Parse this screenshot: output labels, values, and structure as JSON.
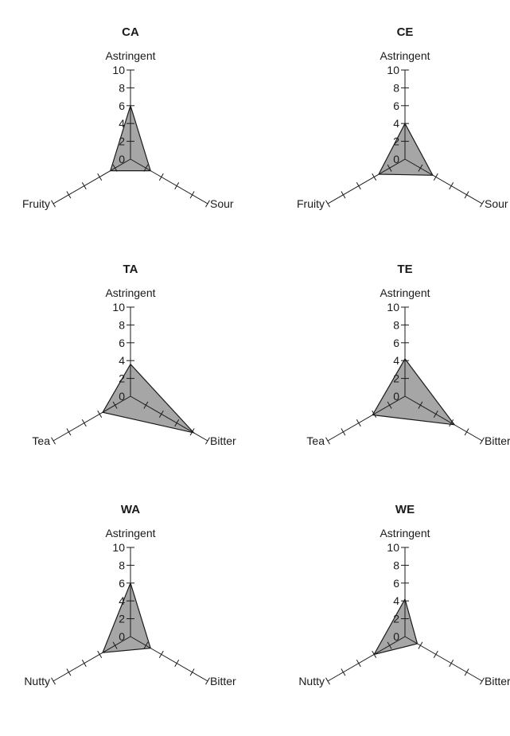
{
  "chart_data": [
    {
      "type": "radar",
      "title": "CA",
      "axes": [
        "Astringent",
        "Sour",
        "Fruity"
      ],
      "values": [
        6,
        2.6,
        2.6
      ],
      "ticks": [
        "0",
        "2",
        "4",
        "6",
        "8",
        "10"
      ],
      "rmax": 10,
      "color": "#a6a6a6"
    },
    {
      "type": "radar",
      "title": "CE",
      "axes": [
        "Astringent",
        "Sour",
        "Fruity"
      ],
      "values": [
        4,
        3.6,
        3.4
      ],
      "ticks": [
        "0",
        "2",
        "4",
        "6",
        "8",
        "10"
      ],
      "rmax": 10,
      "color": "#a6a6a6"
    },
    {
      "type": "radar",
      "title": "TA",
      "axes": [
        "Astringent",
        "Bitter",
        "Tea"
      ],
      "values": [
        3.6,
        8.2,
        3.6
      ],
      "ticks": [
        "0",
        "2",
        "4",
        "6",
        "8",
        "10"
      ],
      "rmax": 10,
      "color": "#a6a6a6"
    },
    {
      "type": "radar",
      "title": "TE",
      "axes": [
        "Astringent",
        "Bitter",
        "Tea"
      ],
      "values": [
        4.2,
        6.4,
        4.2
      ],
      "ticks": [
        "0",
        "2",
        "4",
        "6",
        "8",
        "10"
      ],
      "rmax": 10,
      "color": "#a6a6a6"
    },
    {
      "type": "radar",
      "title": "WA",
      "axes": [
        "Astringent",
        "Bitter",
        "Nutty"
      ],
      "values": [
        6,
        2.6,
        3.6
      ],
      "ticks": [
        "0",
        "2",
        "4",
        "6",
        "8",
        "10"
      ],
      "rmax": 10,
      "color": "#a6a6a6"
    },
    {
      "type": "radar",
      "title": "WE",
      "axes": [
        "Astringent",
        "Bitter",
        "Nutty"
      ],
      "values": [
        4.2,
        1.6,
        4.0
      ],
      "ticks": [
        "0",
        "2",
        "4",
        "6",
        "8",
        "10"
      ],
      "rmax": 10,
      "color": "#a6a6a6"
    }
  ]
}
